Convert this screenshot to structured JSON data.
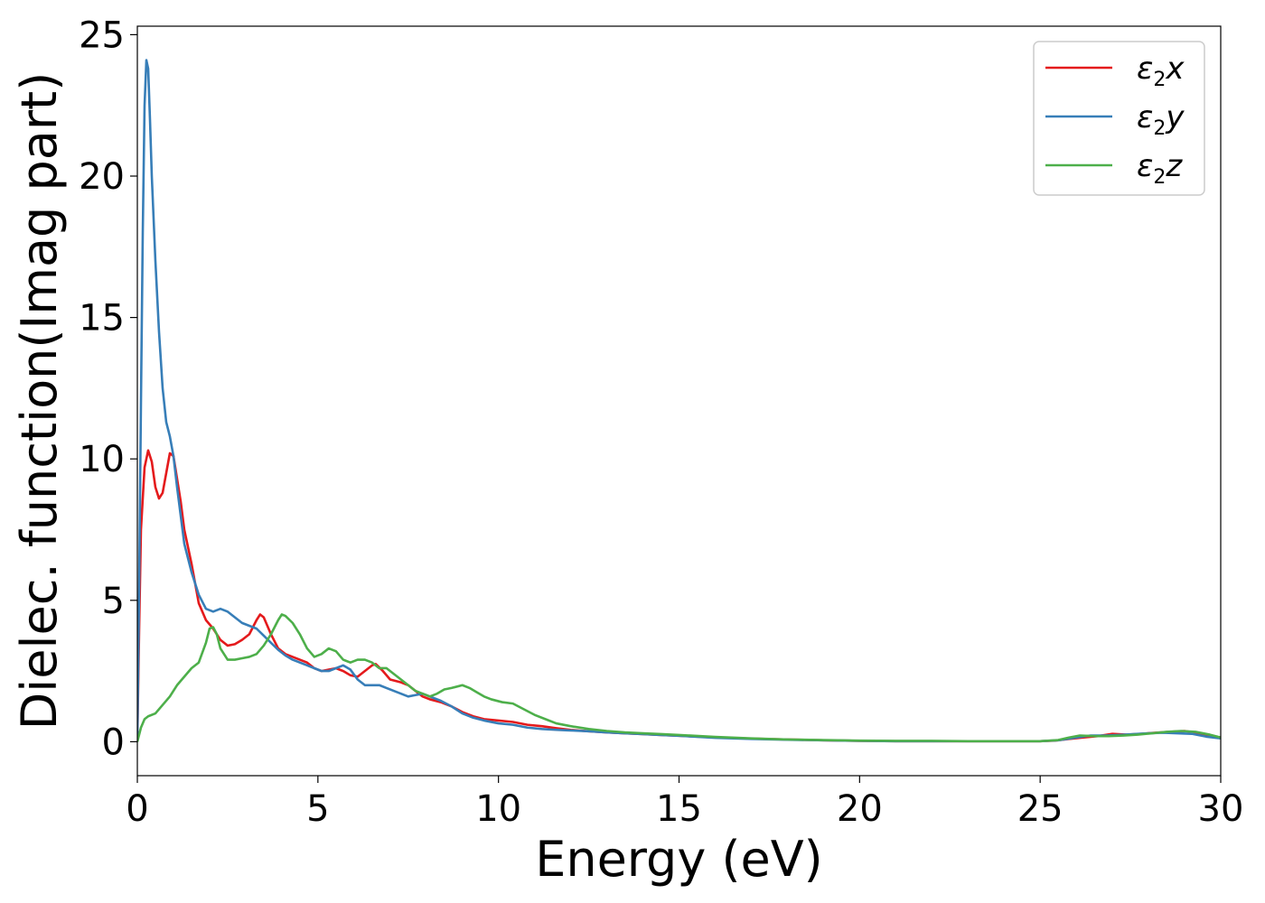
{
  "chart_data": {
    "type": "line",
    "title": "",
    "xlabel": "Energy (eV)",
    "ylabel": "Dielec. function(Imag part)",
    "xlim": [
      0,
      30
    ],
    "ylim": [
      -1.2,
      25.3
    ],
    "x_ticks": [
      0,
      5,
      10,
      15,
      20,
      25,
      30
    ],
    "y_ticks": [
      0,
      5,
      10,
      15,
      20,
      25
    ],
    "grid": false,
    "legend_position": "top-right",
    "series": [
      {
        "name": "ε2x",
        "symbol": "ε",
        "sub": "2",
        "axis": "x",
        "color": "#e41a1c",
        "points": [
          [
            0,
            0.1
          ],
          [
            0.05,
            4.0
          ],
          [
            0.1,
            7.5
          ],
          [
            0.2,
            9.7
          ],
          [
            0.3,
            10.3
          ],
          [
            0.4,
            9.9
          ],
          [
            0.5,
            9.0
          ],
          [
            0.6,
            8.6
          ],
          [
            0.7,
            8.8
          ],
          [
            0.8,
            9.5
          ],
          [
            0.9,
            10.2
          ],
          [
            1.0,
            10.1
          ],
          [
            1.1,
            9.3
          ],
          [
            1.2,
            8.5
          ],
          [
            1.3,
            7.5
          ],
          [
            1.5,
            6.3
          ],
          [
            1.7,
            4.9
          ],
          [
            1.9,
            4.3
          ],
          [
            2.1,
            4.0
          ],
          [
            2.3,
            3.6
          ],
          [
            2.5,
            3.4
          ],
          [
            2.7,
            3.45
          ],
          [
            2.9,
            3.6
          ],
          [
            3.1,
            3.8
          ],
          [
            3.3,
            4.3
          ],
          [
            3.4,
            4.5
          ],
          [
            3.5,
            4.4
          ],
          [
            3.7,
            3.8
          ],
          [
            3.9,
            3.3
          ],
          [
            4.1,
            3.1
          ],
          [
            4.3,
            3.0
          ],
          [
            4.5,
            2.9
          ],
          [
            4.7,
            2.8
          ],
          [
            4.9,
            2.6
          ],
          [
            5.1,
            2.5
          ],
          [
            5.3,
            2.55
          ],
          [
            5.5,
            2.6
          ],
          [
            5.7,
            2.5
          ],
          [
            5.9,
            2.35
          ],
          [
            6.1,
            2.3
          ],
          [
            6.3,
            2.5
          ],
          [
            6.5,
            2.7
          ],
          [
            6.6,
            2.75
          ],
          [
            6.8,
            2.5
          ],
          [
            7.0,
            2.2
          ],
          [
            7.3,
            2.1
          ],
          [
            7.5,
            2.0
          ],
          [
            7.7,
            1.8
          ],
          [
            7.9,
            1.6
          ],
          [
            8.1,
            1.5
          ],
          [
            8.4,
            1.4
          ],
          [
            8.7,
            1.25
          ],
          [
            9.0,
            1.05
          ],
          [
            9.3,
            0.9
          ],
          [
            9.6,
            0.8
          ],
          [
            10.0,
            0.75
          ],
          [
            10.4,
            0.7
          ],
          [
            10.8,
            0.6
          ],
          [
            11.2,
            0.55
          ],
          [
            11.6,
            0.48
          ],
          [
            12.0,
            0.42
          ],
          [
            12.5,
            0.37
          ],
          [
            13.0,
            0.33
          ],
          [
            13.5,
            0.3
          ],
          [
            14.0,
            0.27
          ],
          [
            14.5,
            0.24
          ],
          [
            15.0,
            0.21
          ],
          [
            16.0,
            0.15
          ],
          [
            17.0,
            0.11
          ],
          [
            18.0,
            0.08
          ],
          [
            19.0,
            0.05
          ],
          [
            20.0,
            0.03
          ],
          [
            21.0,
            0.02
          ],
          [
            22.0,
            0.02
          ],
          [
            23.0,
            0.02
          ],
          [
            24.0,
            0.02
          ],
          [
            25.0,
            0.02
          ],
          [
            25.4,
            0.04
          ],
          [
            25.8,
            0.1
          ],
          [
            26.2,
            0.15
          ],
          [
            26.6,
            0.2
          ],
          [
            27.0,
            0.28
          ],
          [
            27.4,
            0.25
          ],
          [
            27.8,
            0.28
          ],
          [
            28.2,
            0.32
          ],
          [
            28.6,
            0.35
          ],
          [
            29.0,
            0.38
          ],
          [
            29.4,
            0.3
          ],
          [
            29.7,
            0.2
          ],
          [
            30.0,
            0.15
          ]
        ]
      },
      {
        "name": "ε2y",
        "symbol": "ε",
        "sub": "2",
        "axis": "y",
        "color": "#377eb8",
        "points": [
          [
            0,
            0.1
          ],
          [
            0.05,
            5.5
          ],
          [
            0.1,
            12.0
          ],
          [
            0.15,
            18.0
          ],
          [
            0.2,
            22.5
          ],
          [
            0.25,
            24.1
          ],
          [
            0.3,
            23.8
          ],
          [
            0.35,
            22.0
          ],
          [
            0.4,
            20.0
          ],
          [
            0.5,
            17.0
          ],
          [
            0.6,
            14.5
          ],
          [
            0.7,
            12.5
          ],
          [
            0.8,
            11.3
          ],
          [
            0.9,
            10.8
          ],
          [
            1.0,
            10.1
          ],
          [
            1.1,
            9.0
          ],
          [
            1.2,
            8.0
          ],
          [
            1.3,
            7.0
          ],
          [
            1.5,
            6.0
          ],
          [
            1.7,
            5.2
          ],
          [
            1.9,
            4.7
          ],
          [
            2.1,
            4.6
          ],
          [
            2.3,
            4.7
          ],
          [
            2.5,
            4.6
          ],
          [
            2.7,
            4.4
          ],
          [
            2.9,
            4.2
          ],
          [
            3.1,
            4.1
          ],
          [
            3.3,
            4.0
          ],
          [
            3.5,
            3.75
          ],
          [
            3.7,
            3.5
          ],
          [
            3.9,
            3.25
          ],
          [
            4.1,
            3.05
          ],
          [
            4.3,
            2.9
          ],
          [
            4.5,
            2.8
          ],
          [
            4.7,
            2.7
          ],
          [
            4.9,
            2.6
          ],
          [
            5.1,
            2.5
          ],
          [
            5.3,
            2.5
          ],
          [
            5.5,
            2.6
          ],
          [
            5.7,
            2.7
          ],
          [
            5.9,
            2.55
          ],
          [
            6.1,
            2.2
          ],
          [
            6.3,
            2.0
          ],
          [
            6.5,
            2.0
          ],
          [
            6.7,
            2.0
          ],
          [
            6.9,
            1.9
          ],
          [
            7.1,
            1.8
          ],
          [
            7.3,
            1.7
          ],
          [
            7.5,
            1.6
          ],
          [
            7.7,
            1.65
          ],
          [
            7.9,
            1.7
          ],
          [
            8.1,
            1.6
          ],
          [
            8.4,
            1.45
          ],
          [
            8.7,
            1.25
          ],
          [
            9.0,
            1.0
          ],
          [
            9.3,
            0.85
          ],
          [
            9.6,
            0.75
          ],
          [
            10.0,
            0.65
          ],
          [
            10.4,
            0.6
          ],
          [
            10.8,
            0.5
          ],
          [
            11.2,
            0.45
          ],
          [
            11.6,
            0.42
          ],
          [
            12.0,
            0.4
          ],
          [
            12.5,
            0.37
          ],
          [
            13.0,
            0.33
          ],
          [
            13.5,
            0.3
          ],
          [
            14.0,
            0.27
          ],
          [
            14.5,
            0.24
          ],
          [
            15.0,
            0.21
          ],
          [
            16.0,
            0.14
          ],
          [
            17.0,
            0.1
          ],
          [
            18.0,
            0.07
          ],
          [
            19.0,
            0.05
          ],
          [
            20.0,
            0.03
          ],
          [
            21.0,
            0.02
          ],
          [
            22.0,
            0.02
          ],
          [
            23.0,
            0.02
          ],
          [
            24.0,
            0.02
          ],
          [
            25.0,
            0.02
          ],
          [
            25.5,
            0.05
          ],
          [
            26.0,
            0.15
          ],
          [
            26.4,
            0.22
          ],
          [
            26.8,
            0.22
          ],
          [
            27.2,
            0.24
          ],
          [
            27.6,
            0.27
          ],
          [
            28.0,
            0.3
          ],
          [
            28.4,
            0.32
          ],
          [
            28.8,
            0.3
          ],
          [
            29.2,
            0.28
          ],
          [
            29.6,
            0.18
          ],
          [
            30.0,
            0.12
          ]
        ]
      },
      {
        "name": "ε2z",
        "symbol": "ε",
        "sub": "2",
        "axis": "z",
        "color": "#4daf4a",
        "points": [
          [
            0,
            0.0
          ],
          [
            0.1,
            0.5
          ],
          [
            0.2,
            0.8
          ],
          [
            0.3,
            0.9
          ],
          [
            0.5,
            1.0
          ],
          [
            0.7,
            1.3
          ],
          [
            0.9,
            1.6
          ],
          [
            1.1,
            2.0
          ],
          [
            1.3,
            2.3
          ],
          [
            1.5,
            2.6
          ],
          [
            1.7,
            2.8
          ],
          [
            1.9,
            3.5
          ],
          [
            2.0,
            4.0
          ],
          [
            2.1,
            4.05
          ],
          [
            2.2,
            3.8
          ],
          [
            2.3,
            3.3
          ],
          [
            2.5,
            2.9
          ],
          [
            2.7,
            2.9
          ],
          [
            2.9,
            2.95
          ],
          [
            3.1,
            3.0
          ],
          [
            3.3,
            3.1
          ],
          [
            3.5,
            3.4
          ],
          [
            3.7,
            3.8
          ],
          [
            3.9,
            4.3
          ],
          [
            4.0,
            4.5
          ],
          [
            4.1,
            4.45
          ],
          [
            4.3,
            4.2
          ],
          [
            4.5,
            3.8
          ],
          [
            4.7,
            3.3
          ],
          [
            4.9,
            3.0
          ],
          [
            5.1,
            3.1
          ],
          [
            5.3,
            3.3
          ],
          [
            5.5,
            3.2
          ],
          [
            5.7,
            2.9
          ],
          [
            5.9,
            2.8
          ],
          [
            6.1,
            2.9
          ],
          [
            6.3,
            2.9
          ],
          [
            6.5,
            2.8
          ],
          [
            6.7,
            2.6
          ],
          [
            6.9,
            2.6
          ],
          [
            7.1,
            2.4
          ],
          [
            7.3,
            2.2
          ],
          [
            7.5,
            2.0
          ],
          [
            7.7,
            1.8
          ],
          [
            7.9,
            1.7
          ],
          [
            8.1,
            1.6
          ],
          [
            8.3,
            1.7
          ],
          [
            8.5,
            1.85
          ],
          [
            8.7,
            1.9
          ],
          [
            9.0,
            2.0
          ],
          [
            9.2,
            1.9
          ],
          [
            9.4,
            1.75
          ],
          [
            9.6,
            1.6
          ],
          [
            9.8,
            1.5
          ],
          [
            10.1,
            1.4
          ],
          [
            10.4,
            1.35
          ],
          [
            10.7,
            1.15
          ],
          [
            11.0,
            0.95
          ],
          [
            11.3,
            0.8
          ],
          [
            11.6,
            0.65
          ],
          [
            12.0,
            0.55
          ],
          [
            12.5,
            0.45
          ],
          [
            13.0,
            0.38
          ],
          [
            13.5,
            0.33
          ],
          [
            14.0,
            0.3
          ],
          [
            14.5,
            0.27
          ],
          [
            15.0,
            0.24
          ],
          [
            16.0,
            0.17
          ],
          [
            17.0,
            0.12
          ],
          [
            18.0,
            0.08
          ],
          [
            19.0,
            0.06
          ],
          [
            20.0,
            0.04
          ],
          [
            21.0,
            0.03
          ],
          [
            22.0,
            0.03
          ],
          [
            23.0,
            0.02
          ],
          [
            24.0,
            0.02
          ],
          [
            25.0,
            0.02
          ],
          [
            25.5,
            0.06
          ],
          [
            25.8,
            0.15
          ],
          [
            26.1,
            0.22
          ],
          [
            26.5,
            0.2
          ],
          [
            26.9,
            0.2
          ],
          [
            27.3,
            0.22
          ],
          [
            27.7,
            0.25
          ],
          [
            28.1,
            0.3
          ],
          [
            28.5,
            0.35
          ],
          [
            28.9,
            0.38
          ],
          [
            29.3,
            0.35
          ],
          [
            29.7,
            0.25
          ],
          [
            30.0,
            0.15
          ]
        ]
      }
    ]
  }
}
